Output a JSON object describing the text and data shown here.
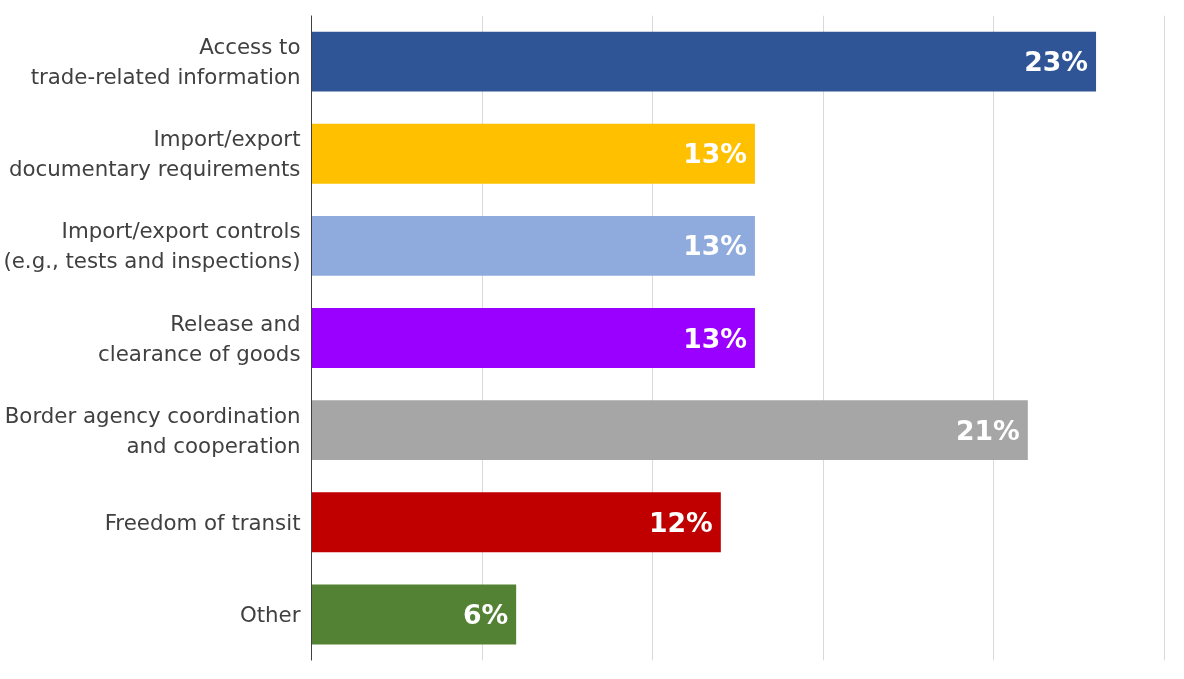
{
  "chart_data": {
    "type": "bar",
    "orientation": "horizontal",
    "categories": [
      "Access to\ntrade-related information",
      "Import/export\ndocumentary requirements",
      "Import/export controls\n(e.g., tests and inspections)",
      "Release and\nclearance of goods",
      "Border agency coordination\nand cooperation",
      "Freedom of transit",
      "Other"
    ],
    "values": [
      23,
      13,
      13,
      13,
      21,
      12,
      6
    ],
    "value_labels": [
      "23%",
      "13%",
      "13%",
      "13%",
      "21%",
      "12%",
      "6%"
    ],
    "colors": [
      "#2f5597",
      "#ffc000",
      "#8faadc",
      "#9900ff",
      "#a6a6a6",
      "#c00000",
      "#548235"
    ],
    "grid": "x",
    "tick_labels": "y"
  }
}
